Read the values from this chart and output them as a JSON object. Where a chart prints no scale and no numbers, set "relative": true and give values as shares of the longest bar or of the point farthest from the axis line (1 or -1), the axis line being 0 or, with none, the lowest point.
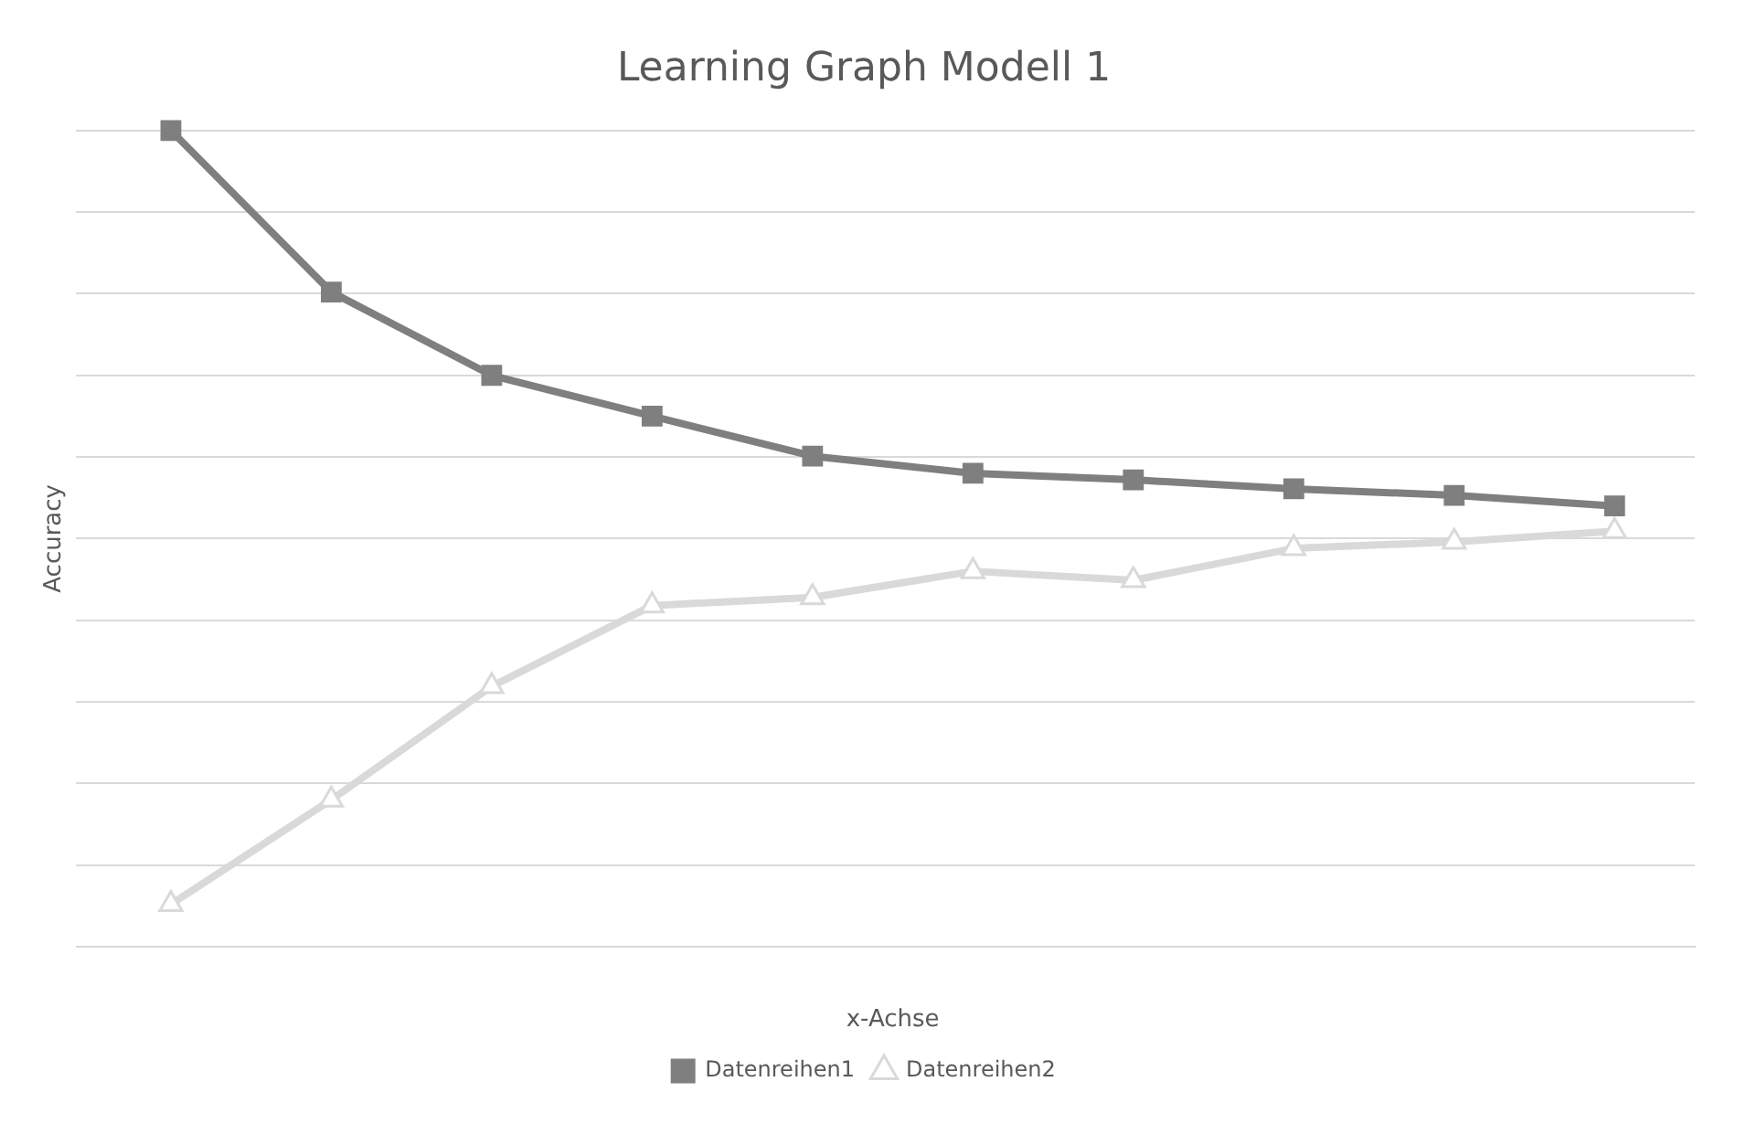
{
  "chart_data": {
    "type": "line",
    "title": "Learning Graph Modell 1",
    "xlabel": "x-Achse",
    "ylabel": "Accuracy",
    "relative": true,
    "categories": [
      null,
      null,
      null,
      null,
      null,
      null,
      null,
      null,
      null,
      null
    ],
    "series": [
      {
        "name": "Datenreihen1",
        "color": "#7f7f7f",
        "marker": "square",
        "values": [
          1,
          0.802,
          0.7,
          0.65,
          0.601,
          0.58,
          0.572,
          0.561,
          0.553,
          0.54
        ]
      },
      {
        "name": "Datenreihen2",
        "color": "#d9d9d9",
        "marker": "triangle",
        "values": [
          0.052,
          0.18,
          0.319,
          0.418,
          0.428,
          0.46,
          0.449,
          0.488,
          0.496,
          0.509
        ]
      }
    ],
    "grid": "y",
    "legend": "bottom"
  }
}
